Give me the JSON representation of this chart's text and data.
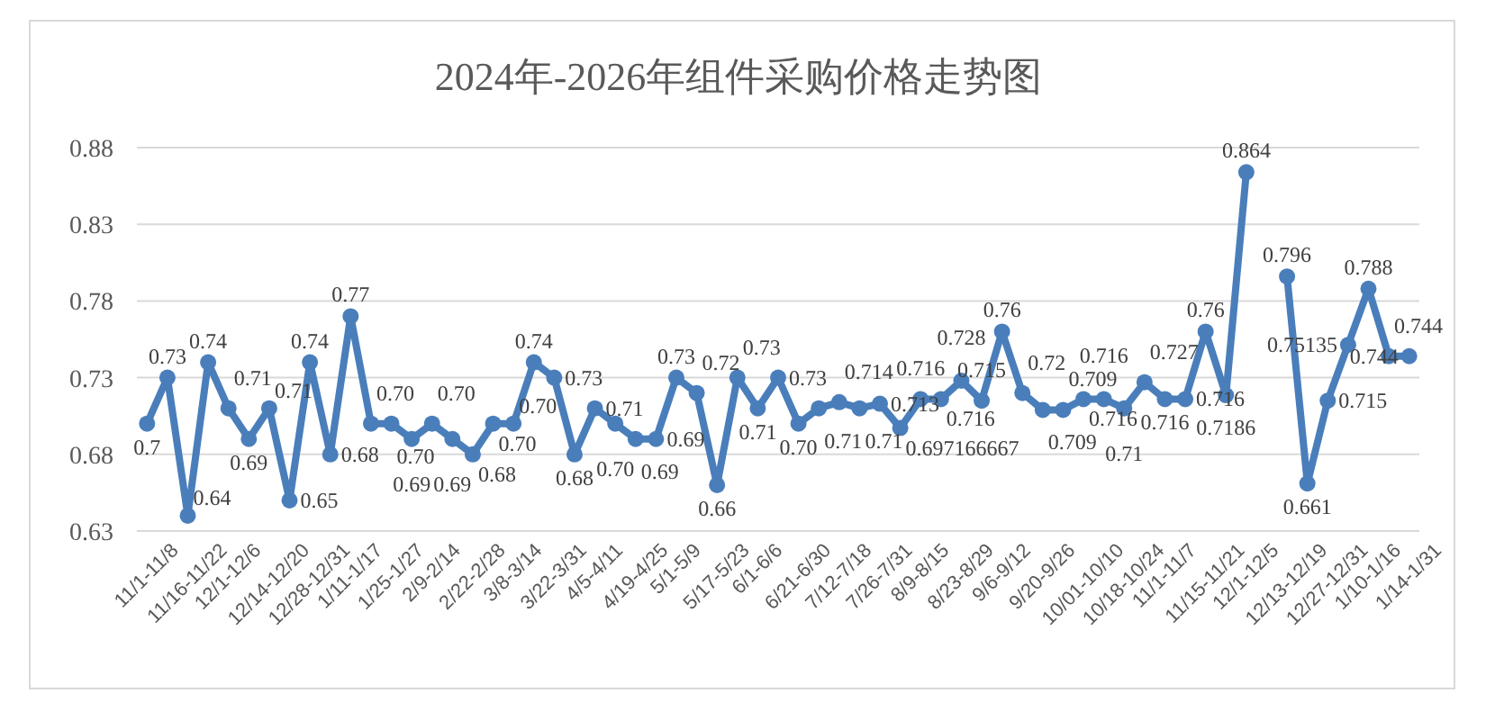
{
  "chart_data": {
    "type": "line",
    "title": "2024年-2026年组件采购价格走势图",
    "categories": [
      "11/1-11/8",
      null,
      "11/16-11/22",
      null,
      "12/1-12/6",
      null,
      "12/14-12/20",
      null,
      "12/28-12/31",
      null,
      "1/11-1/17",
      null,
      "1/25-1/27",
      null,
      "2/9-2/14",
      null,
      "2/22-2/28",
      null,
      "3/8-3/14",
      null,
      "3/22-3/31",
      null,
      "4/5-4/11",
      null,
      "4/19-4/25",
      null,
      "5/1-5/9",
      null,
      "5/17-5/23",
      null,
      "6/1-6/6",
      null,
      "6/21-6/30",
      null,
      "7/12-7/18",
      null,
      "7/26-7/31",
      null,
      "8/9-8/15",
      null,
      "8/23-8/29",
      null,
      "9/6-9/12",
      null,
      "9/20-9/26",
      null,
      "10/01-10/10",
      null,
      "10/18-10/24",
      null,
      "11/1-11/7",
      null,
      "11/15-11/21",
      null,
      "12/1-12/5",
      null,
      "12/13-12/19",
      null,
      "12/27-12/31",
      null,
      "1/10-1/16",
      null,
      "1/14-1/31"
    ],
    "series": [
      {
        "color": "#4a7ebb",
        "values": [
          0.7,
          0.73,
          0.64,
          0.74,
          0.71,
          0.69,
          0.71,
          0.65,
          0.74,
          0.68,
          0.77,
          0.7,
          0.7,
          0.69,
          0.7,
          0.69,
          0.68,
          0.7,
          0.7,
          0.74,
          0.73,
          0.68,
          0.71,
          0.7,
          0.69,
          0.69,
          0.73,
          0.72,
          0.66,
          0.73,
          0.71,
          0.73,
          0.7,
          0.71,
          0.714,
          0.71,
          0.713,
          0.697166667,
          0.716,
          0.716,
          0.728,
          0.715,
          0.76,
          0.72,
          0.709,
          0.709,
          0.716,
          0.716,
          0.71,
          0.727,
          0.716,
          0.716,
          0.76,
          0.7186,
          0.864,
          null,
          0.796,
          0.661,
          0.715,
          0.75135,
          0.788,
          0.744,
          0.744
        ],
        "value_labels": [
          "0.7",
          "0.73",
          "0.64",
          "0.74",
          "0.71",
          "0.69",
          "0.71",
          "0.65",
          "0.74",
          "0.68",
          "0.77",
          "0.70",
          "0.70",
          "0.69",
          "0.70",
          "0.69",
          "0.68",
          "0.70",
          "0.70",
          "0.74",
          "0.73",
          "0.68",
          "0.71",
          "0.70",
          "0.69",
          "0.69",
          "0.73",
          "0.72",
          "0.66",
          "0.73",
          "0.71",
          "0.73",
          "0.70",
          "0.71",
          "0.714",
          "0.71",
          "0.713",
          "0.697166667",
          "0.716",
          "0.716",
          "0.728",
          "0.715",
          "0.76",
          "0.72",
          "0.709",
          "0.709",
          "0.716",
          "0.716",
          "0.71",
          "0.727",
          "0.716",
          "0.716",
          "0.76",
          "0.7186",
          "0.864",
          null,
          "0.796",
          "0.661",
          "0.715",
          "0.75135",
          "0.788",
          "0.744",
          "0.744"
        ]
      }
    ],
    "ylim": [
      0.63,
      0.88
    ],
    "yticks": [
      0.63,
      0.68,
      0.73,
      0.78,
      0.83,
      0.88
    ],
    "grid": "y",
    "marker": "circle",
    "line_style": "solid"
  }
}
